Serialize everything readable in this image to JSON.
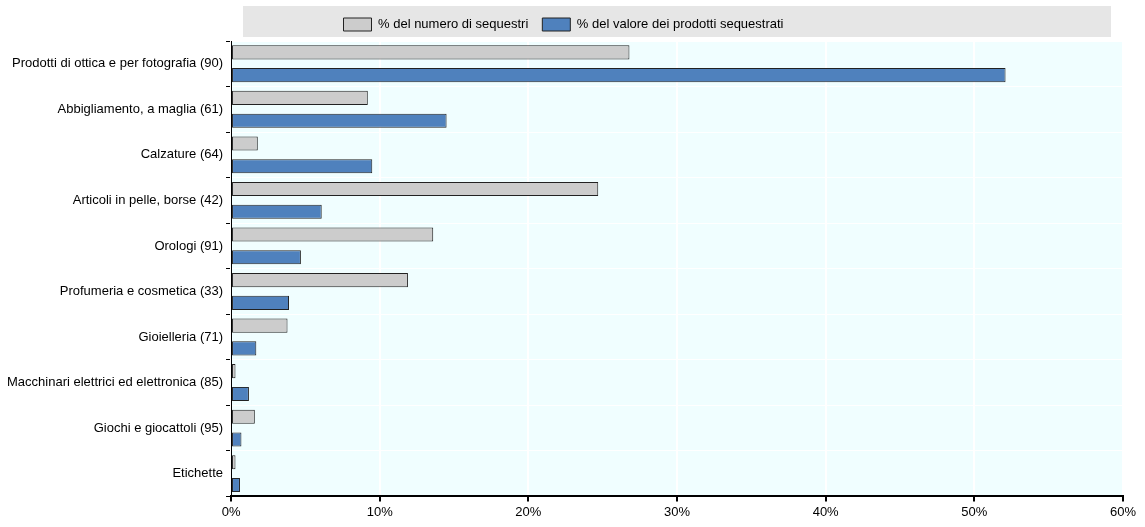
{
  "chart_data": {
    "type": "bar",
    "orientation": "horizontal",
    "categories": [
      "Prodotti di ottica e per fotografia (90)",
      "Abbigliamento, a maglia (61)",
      "Calzature (64)",
      "Articoli in pelle, borse (42)",
      "Orologi (91)",
      "Profumeria e cosmetica (33)",
      "Gioielleria (71)",
      "Macchinari elettrici ed elettronica (85)",
      "Giochi e giocattoli (95)",
      "Etichette"
    ],
    "series": [
      {
        "name": "% del numero di sequestri",
        "color": "#cccccc",
        "values": [
          26.8,
          9.2,
          1.8,
          24.7,
          13.6,
          11.9,
          3.8,
          0.3,
          1.6,
          0.3
        ]
      },
      {
        "name": "% del valore dei prodotti sequestrati",
        "color": "#4f81bd",
        "values": [
          52.1,
          14.5,
          9.5,
          6.1,
          4.7,
          3.9,
          1.7,
          1.2,
          0.7,
          0.6
        ]
      }
    ],
    "xlim": [
      0,
      60
    ],
    "xticks": [
      {
        "value": 0,
        "label": "0%"
      },
      {
        "value": 10,
        "label": "10%"
      },
      {
        "value": 20,
        "label": "20%"
      },
      {
        "value": 30,
        "label": "30%"
      },
      {
        "value": 40,
        "label": "40%"
      },
      {
        "value": 50,
        "label": "50%"
      },
      {
        "value": 60,
        "label": "60%"
      }
    ],
    "grid": true,
    "legend": "top"
  }
}
